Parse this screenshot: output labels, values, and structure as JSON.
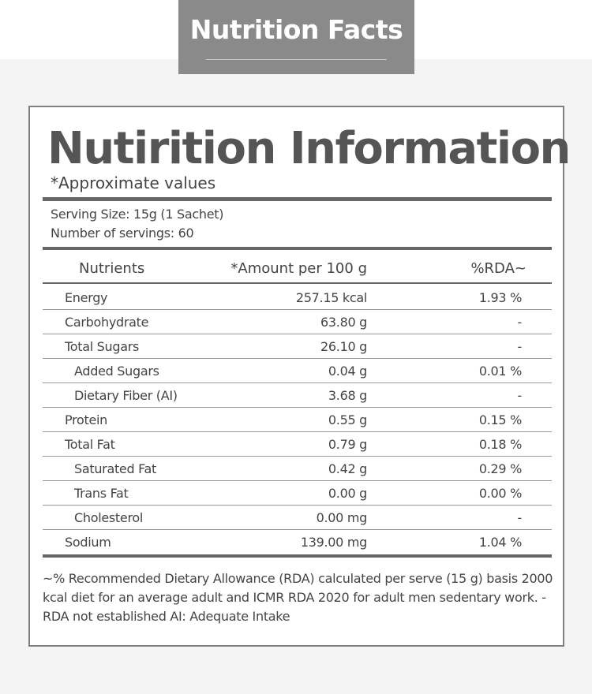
{
  "header": {
    "title": "Nutrition Facts"
  },
  "panel": {
    "title": "Nutirition Information",
    "subtitle": "*Approximate values",
    "serving_size": "Serving Size: 15g (1 Sachet)",
    "servings": "Number of servings: 60"
  },
  "table": {
    "headers": {
      "nutrients": "Nutrients",
      "amount": "*Amount per 100 g",
      "rda": "%RDA~"
    },
    "rows": [
      {
        "name": "Energy",
        "amount": "257.15 kcal",
        "rda": "1.93 %"
      },
      {
        "name": "Carbohydrate",
        "amount": "63.80 g",
        "rda": "-"
      },
      {
        "name": "Total Sugars",
        "amount": "26.10 g",
        "rda": "-"
      },
      {
        "name": "Added Sugars",
        "amount": "0.04 g",
        "rda": "0.01 %"
      },
      {
        "name": "Dietary Fiber (AI)",
        "amount": "3.68 g",
        "rda": "-"
      },
      {
        "name": "Protein",
        "amount": "0.55 g",
        "rda": "0.15 %"
      },
      {
        "name": "Total Fat",
        "amount": "0.79 g",
        "rda": "0.18 %"
      },
      {
        "name": "Saturated Fat",
        "amount": "0.42 g",
        "rda": "0.29 %"
      },
      {
        "name": "Trans Fat",
        "amount": "0.00 g",
        "rda": "0.00 %"
      },
      {
        "name": "Cholesterol",
        "amount": "0.00 mg",
        "rda": "-"
      },
      {
        "name": "Sodium",
        "amount": "139.00 mg",
        "rda": "1.04 %"
      }
    ]
  },
  "footnote": "~% Recommended Dietary Allowance (RDA) calculated per serve (15 g) basis 2000 kcal diet for an average adult and ICMR RDA 2020 for adult men sedentary work. - RDA not established AI: Adequate Intake"
}
